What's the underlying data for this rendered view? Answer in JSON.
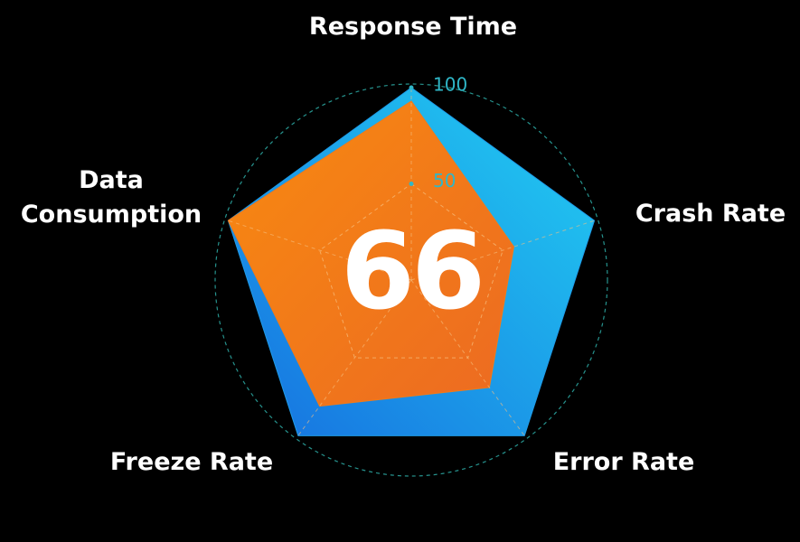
{
  "chart_data": {
    "type": "radar",
    "axes": [
      "Response Time",
      "Crash Rate",
      "Error Rate",
      "Freeze Rate",
      "Data Consumption"
    ],
    "rlim": [
      0,
      100
    ],
    "rticks": [
      50,
      100
    ],
    "grid": true,
    "center_value": 66,
    "series": [
      {
        "color": "#1e9be8",
        "values": [
          100,
          100,
          100,
          100,
          100
        ]
      },
      {
        "color": "#f27a18",
        "values": [
          93,
          56,
          69,
          81,
          100
        ]
      }
    ]
  }
}
